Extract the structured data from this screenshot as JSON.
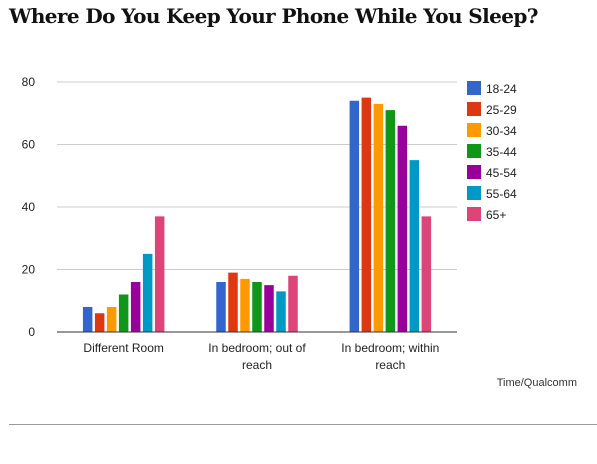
{
  "title": "Where Do You Keep Your Phone While You Sleep?",
  "source": "Time/Qualcomm",
  "chart_data": {
    "type": "bar",
    "title": "Where Do You Keep Your Phone While You Sleep?",
    "categories": [
      [
        "Different Room"
      ],
      [
        "In bedroom; out of",
        "reach"
      ],
      [
        "In bedroom; within",
        "reach"
      ]
    ],
    "series": [
      {
        "name": "18-24",
        "color": "#3366cc",
        "values": [
          8,
          16,
          74
        ]
      },
      {
        "name": "25-29",
        "color": "#dc3912",
        "values": [
          6,
          19,
          75
        ]
      },
      {
        "name": "30-34",
        "color": "#ff9900",
        "values": [
          8,
          17,
          73
        ]
      },
      {
        "name": "35-44",
        "color": "#109618",
        "values": [
          12,
          16,
          71
        ]
      },
      {
        "name": "45-54",
        "color": "#990099",
        "values": [
          16,
          15,
          66
        ]
      },
      {
        "name": "55-64",
        "color": "#0099c6",
        "values": [
          25,
          13,
          55
        ]
      },
      {
        "name": "65+",
        "color": "#dd4477",
        "values": [
          37,
          18,
          37
        ]
      }
    ],
    "yticks": [
      0,
      20,
      40,
      60,
      80
    ],
    "ylim": [
      0,
      80
    ],
    "grid": true,
    "legend": "right"
  }
}
